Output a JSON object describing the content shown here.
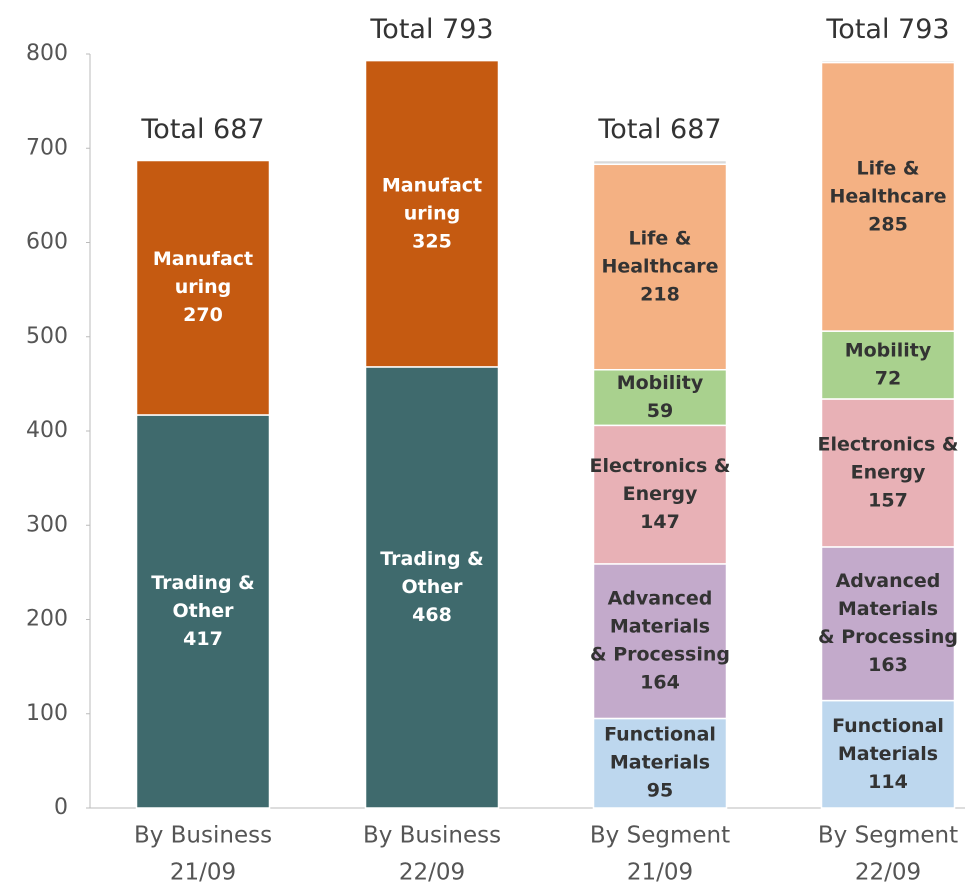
{
  "chart_data": {
    "type": "stacked_bar",
    "categories": [
      [
        "By Business",
        "21/09"
      ],
      [
        "By Business",
        "22/09"
      ],
      [
        "By Segment",
        "21/09"
      ],
      [
        "By Segment",
        "22/09"
      ]
    ],
    "series": [
      {
        "name": [
          "Trading &",
          "Other"
        ],
        "color": "#3f6a6d",
        "label_color": "#ffffff",
        "values": [
          417,
          468,
          null,
          null
        ]
      },
      {
        "name": [
          "Manufact",
          "uring"
        ],
        "color": "#c55a11",
        "label_color": "#ffffff",
        "values": [
          270,
          325,
          null,
          null
        ]
      },
      {
        "name": [
          "Functional",
          "Materials"
        ],
        "color": "#bdd7ee",
        "label_color": "#333333",
        "values": [
          null,
          null,
          95,
          114
        ]
      },
      {
        "name": [
          "Advanced",
          "Materials",
          "& Processing"
        ],
        "color": "#c3aacb",
        "label_color": "#333333",
        "values": [
          null,
          null,
          164,
          163
        ]
      },
      {
        "name": [
          "Electronics &",
          "Energy"
        ],
        "color": "#e8b1b6",
        "label_color": "#333333",
        "values": [
          null,
          null,
          147,
          157
        ]
      },
      {
        "name": [
          "Mobility"
        ],
        "color": "#a9d18e",
        "label_color": "#333333",
        "values": [
          null,
          null,
          59,
          72
        ]
      },
      {
        "name": [
          "Life &",
          "Healthcare"
        ],
        "color": "#f4b183",
        "label_color": "#333333",
        "values": [
          null,
          null,
          218,
          285
        ]
      },
      {
        "color": "#d9d9d9",
        "values": [
          null,
          null,
          4,
          2
        ]
      }
    ],
    "totals": [
      687,
      793,
      687,
      793
    ],
    "total_labels": [
      "Total 687",
      "Total 793",
      "Total 687",
      "Total 793"
    ],
    "ylim": [
      0,
      800
    ],
    "yticks": [
      0,
      100,
      200,
      300,
      400,
      500,
      600,
      700,
      800
    ]
  }
}
